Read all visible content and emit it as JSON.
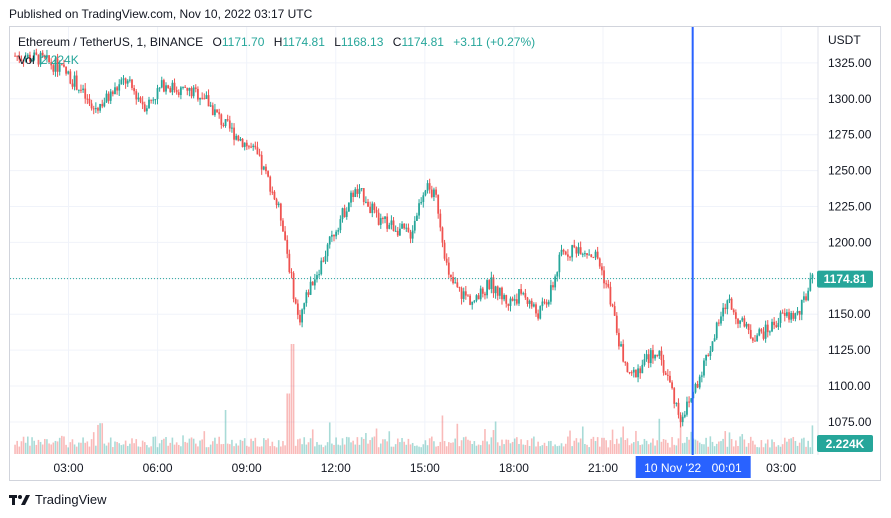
{
  "published": "Published on TradingView.com, Nov 10, 2022 03:17 UTC",
  "footer_brand": "TradingView",
  "legend": {
    "symbol": "Ethereum / TetherUS, 1, BINANCE",
    "open_label": "O",
    "open": "1171.70",
    "high_label": "H",
    "high": "1174.81",
    "low_label": "L",
    "low": "1168.13",
    "close_label": "C",
    "close": "1174.81",
    "change": "+3.11 (+0.27%)",
    "vol_label": "Vol",
    "vol": "2.224K"
  },
  "colors": {
    "up": "#26a69a",
    "down": "#ef5350",
    "crosshair": "#2962ff",
    "grid": "#f0f3fa",
    "price_badge": "#26a69a"
  },
  "chart_data": {
    "type": "candlestick",
    "currency": "USDT",
    "y_ticks": [
      "1325.00",
      "1300.00",
      "1275.00",
      "1250.00",
      "1225.00",
      "1200.00",
      "1175.00",
      "1150.00",
      "1125.00",
      "1100.00",
      "1075.00"
    ],
    "y_tick_values": [
      1325,
      1300,
      1275,
      1250,
      1225,
      1200,
      1175,
      1150,
      1125,
      1100,
      1075
    ],
    "ylim": [
      1052,
      1350
    ],
    "x_ticks": [
      "03:00",
      "06:00",
      "09:00",
      "12:00",
      "15:00",
      "18:00",
      "21:00",
      "00:01",
      "03:00"
    ],
    "x_tick_hours": [
      3,
      6,
      9,
      12,
      15,
      18,
      21,
      24,
      27
    ],
    "xlim_hours": [
      1.03,
      28.24
    ],
    "crosshair": {
      "hour": 24.02,
      "label": "10 Nov '22",
      "time": "00:01"
    },
    "last_price": {
      "value": 1174.81,
      "label": "1174.81"
    },
    "last_volume": {
      "label": "2.224K"
    },
    "series": [
      {
        "hour": 1.2,
        "value": 1330
      },
      {
        "hour": 2.0,
        "value": 1328
      },
      {
        "hour": 2.7,
        "value": 1322
      },
      {
        "hour": 3.3,
        "value": 1310
      },
      {
        "hour": 3.8,
        "value": 1292
      },
      {
        "hour": 4.3,
        "value": 1300
      },
      {
        "hour": 4.9,
        "value": 1313
      },
      {
        "hour": 5.6,
        "value": 1295
      },
      {
        "hour": 6.2,
        "value": 1310
      },
      {
        "hour": 6.8,
        "value": 1306
      },
      {
        "hour": 7.5,
        "value": 1303
      },
      {
        "hour": 8.2,
        "value": 1283
      },
      {
        "hour": 8.8,
        "value": 1272
      },
      {
        "hour": 9.3,
        "value": 1262
      },
      {
        "hour": 9.8,
        "value": 1240
      },
      {
        "hour": 10.2,
        "value": 1215
      },
      {
        "hour": 10.5,
        "value": 1175
      },
      {
        "hour": 10.75,
        "value": 1145
      },
      {
        "hour": 11.1,
        "value": 1168
      },
      {
        "hour": 11.5,
        "value": 1185
      },
      {
        "hour": 12.0,
        "value": 1210
      },
      {
        "hour": 12.6,
        "value": 1235
      },
      {
        "hour": 13.0,
        "value": 1232
      },
      {
        "hour": 13.4,
        "value": 1215
      },
      {
        "hour": 13.9,
        "value": 1212
      },
      {
        "hour": 14.5,
        "value": 1205
      },
      {
        "hour": 15.0,
        "value": 1240
      },
      {
        "hour": 15.4,
        "value": 1230
      },
      {
        "hour": 15.8,
        "value": 1175
      },
      {
        "hour": 16.2,
        "value": 1165
      },
      {
        "hour": 16.7,
        "value": 1158
      },
      {
        "hour": 17.2,
        "value": 1172
      },
      {
        "hour": 17.8,
        "value": 1158
      },
      {
        "hour": 18.3,
        "value": 1165
      },
      {
        "hour": 18.8,
        "value": 1150
      },
      {
        "hour": 19.2,
        "value": 1162
      },
      {
        "hour": 19.6,
        "value": 1192
      },
      {
        "hour": 20.2,
        "value": 1197
      },
      {
        "hour": 20.8,
        "value": 1190
      },
      {
        "hour": 21.2,
        "value": 1165
      },
      {
        "hour": 21.6,
        "value": 1125
      },
      {
        "hour": 21.9,
        "value": 1105
      },
      {
        "hour": 22.3,
        "value": 1115
      },
      {
        "hour": 22.8,
        "value": 1125
      },
      {
        "hour": 23.2,
        "value": 1105
      },
      {
        "hour": 23.6,
        "value": 1078
      },
      {
        "hour": 23.9,
        "value": 1088
      },
      {
        "hour": 24.3,
        "value": 1110
      },
      {
        "hour": 24.8,
        "value": 1138
      },
      {
        "hour": 25.2,
        "value": 1160
      },
      {
        "hour": 25.6,
        "value": 1145
      },
      {
        "hour": 26.0,
        "value": 1135
      },
      {
        "hour": 26.5,
        "value": 1138
      },
      {
        "hour": 27.0,
        "value": 1148
      },
      {
        "hour": 27.6,
        "value": 1150
      },
      {
        "hour": 28.0,
        "value": 1172
      },
      {
        "hour": 28.12,
        "value": 1174.81
      }
    ],
    "volume_spikes": [
      {
        "hour": 10.55,
        "rel": 1.0
      },
      {
        "hour": 10.4,
        "rel": 0.55
      },
      {
        "hour": 8.3,
        "rel": 0.4
      },
      {
        "hour": 15.6,
        "rel": 0.35
      },
      {
        "hour": 23.6,
        "rel": 0.33
      },
      {
        "hour": 20.3,
        "rel": 0.25
      },
      {
        "hour": 4.1,
        "rel": 0.28
      },
      {
        "hour": 21.7,
        "rel": 0.25
      }
    ]
  }
}
